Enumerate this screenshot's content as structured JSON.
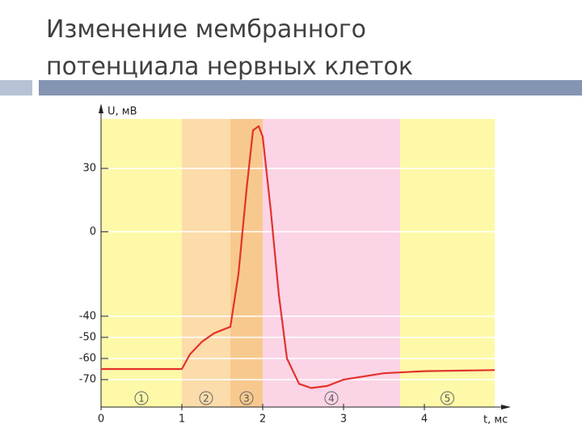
{
  "slide": {
    "title": "Изменение мембранного потенциала нервных клеток"
  },
  "chart_data": {
    "type": "line",
    "color": "#e3322b",
    "x": [
      0,
      1,
      1.1,
      1.25,
      1.4,
      1.6,
      1.7,
      1.8,
      1.88,
      1.95,
      2.0,
      2.1,
      2.2,
      2.3,
      2.45,
      2.6,
      2.8,
      3.0,
      3.5,
      4.0,
      4.87
    ],
    "values": [
      -65,
      -65,
      -58,
      -52,
      -48,
      -45,
      -20,
      20,
      48,
      50,
      45,
      10,
      -30,
      -60,
      -72,
      -74,
      -73,
      -70,
      -67,
      -66,
      -65.5
    ],
    "xlim": [
      0,
      4.87
    ],
    "ylim": [
      -83,
      53.4
    ],
    "xticks": [
      0,
      1,
      2,
      3,
      4
    ],
    "yticks": [
      30,
      0,
      -40,
      -50,
      -60,
      -70
    ],
    "x_label": "t, мс",
    "y_label": "U, мВ",
    "grid": true,
    "regions": [
      {
        "label": "1",
        "start": 0,
        "end": 1,
        "color": "#fdf9a8"
      },
      {
        "label": "2",
        "start": 1,
        "end": 1.6,
        "color": "#fbdcaa"
      },
      {
        "label": "3",
        "start": 1.6,
        "end": 2,
        "color": "#f8c98e"
      },
      {
        "label": "4",
        "start": 2,
        "end": 3.7,
        "color": "#fbd4e6"
      },
      {
        "label": "5",
        "start": 3.7,
        "end": 4.87,
        "color": "#fdf9a8"
      }
    ]
  }
}
